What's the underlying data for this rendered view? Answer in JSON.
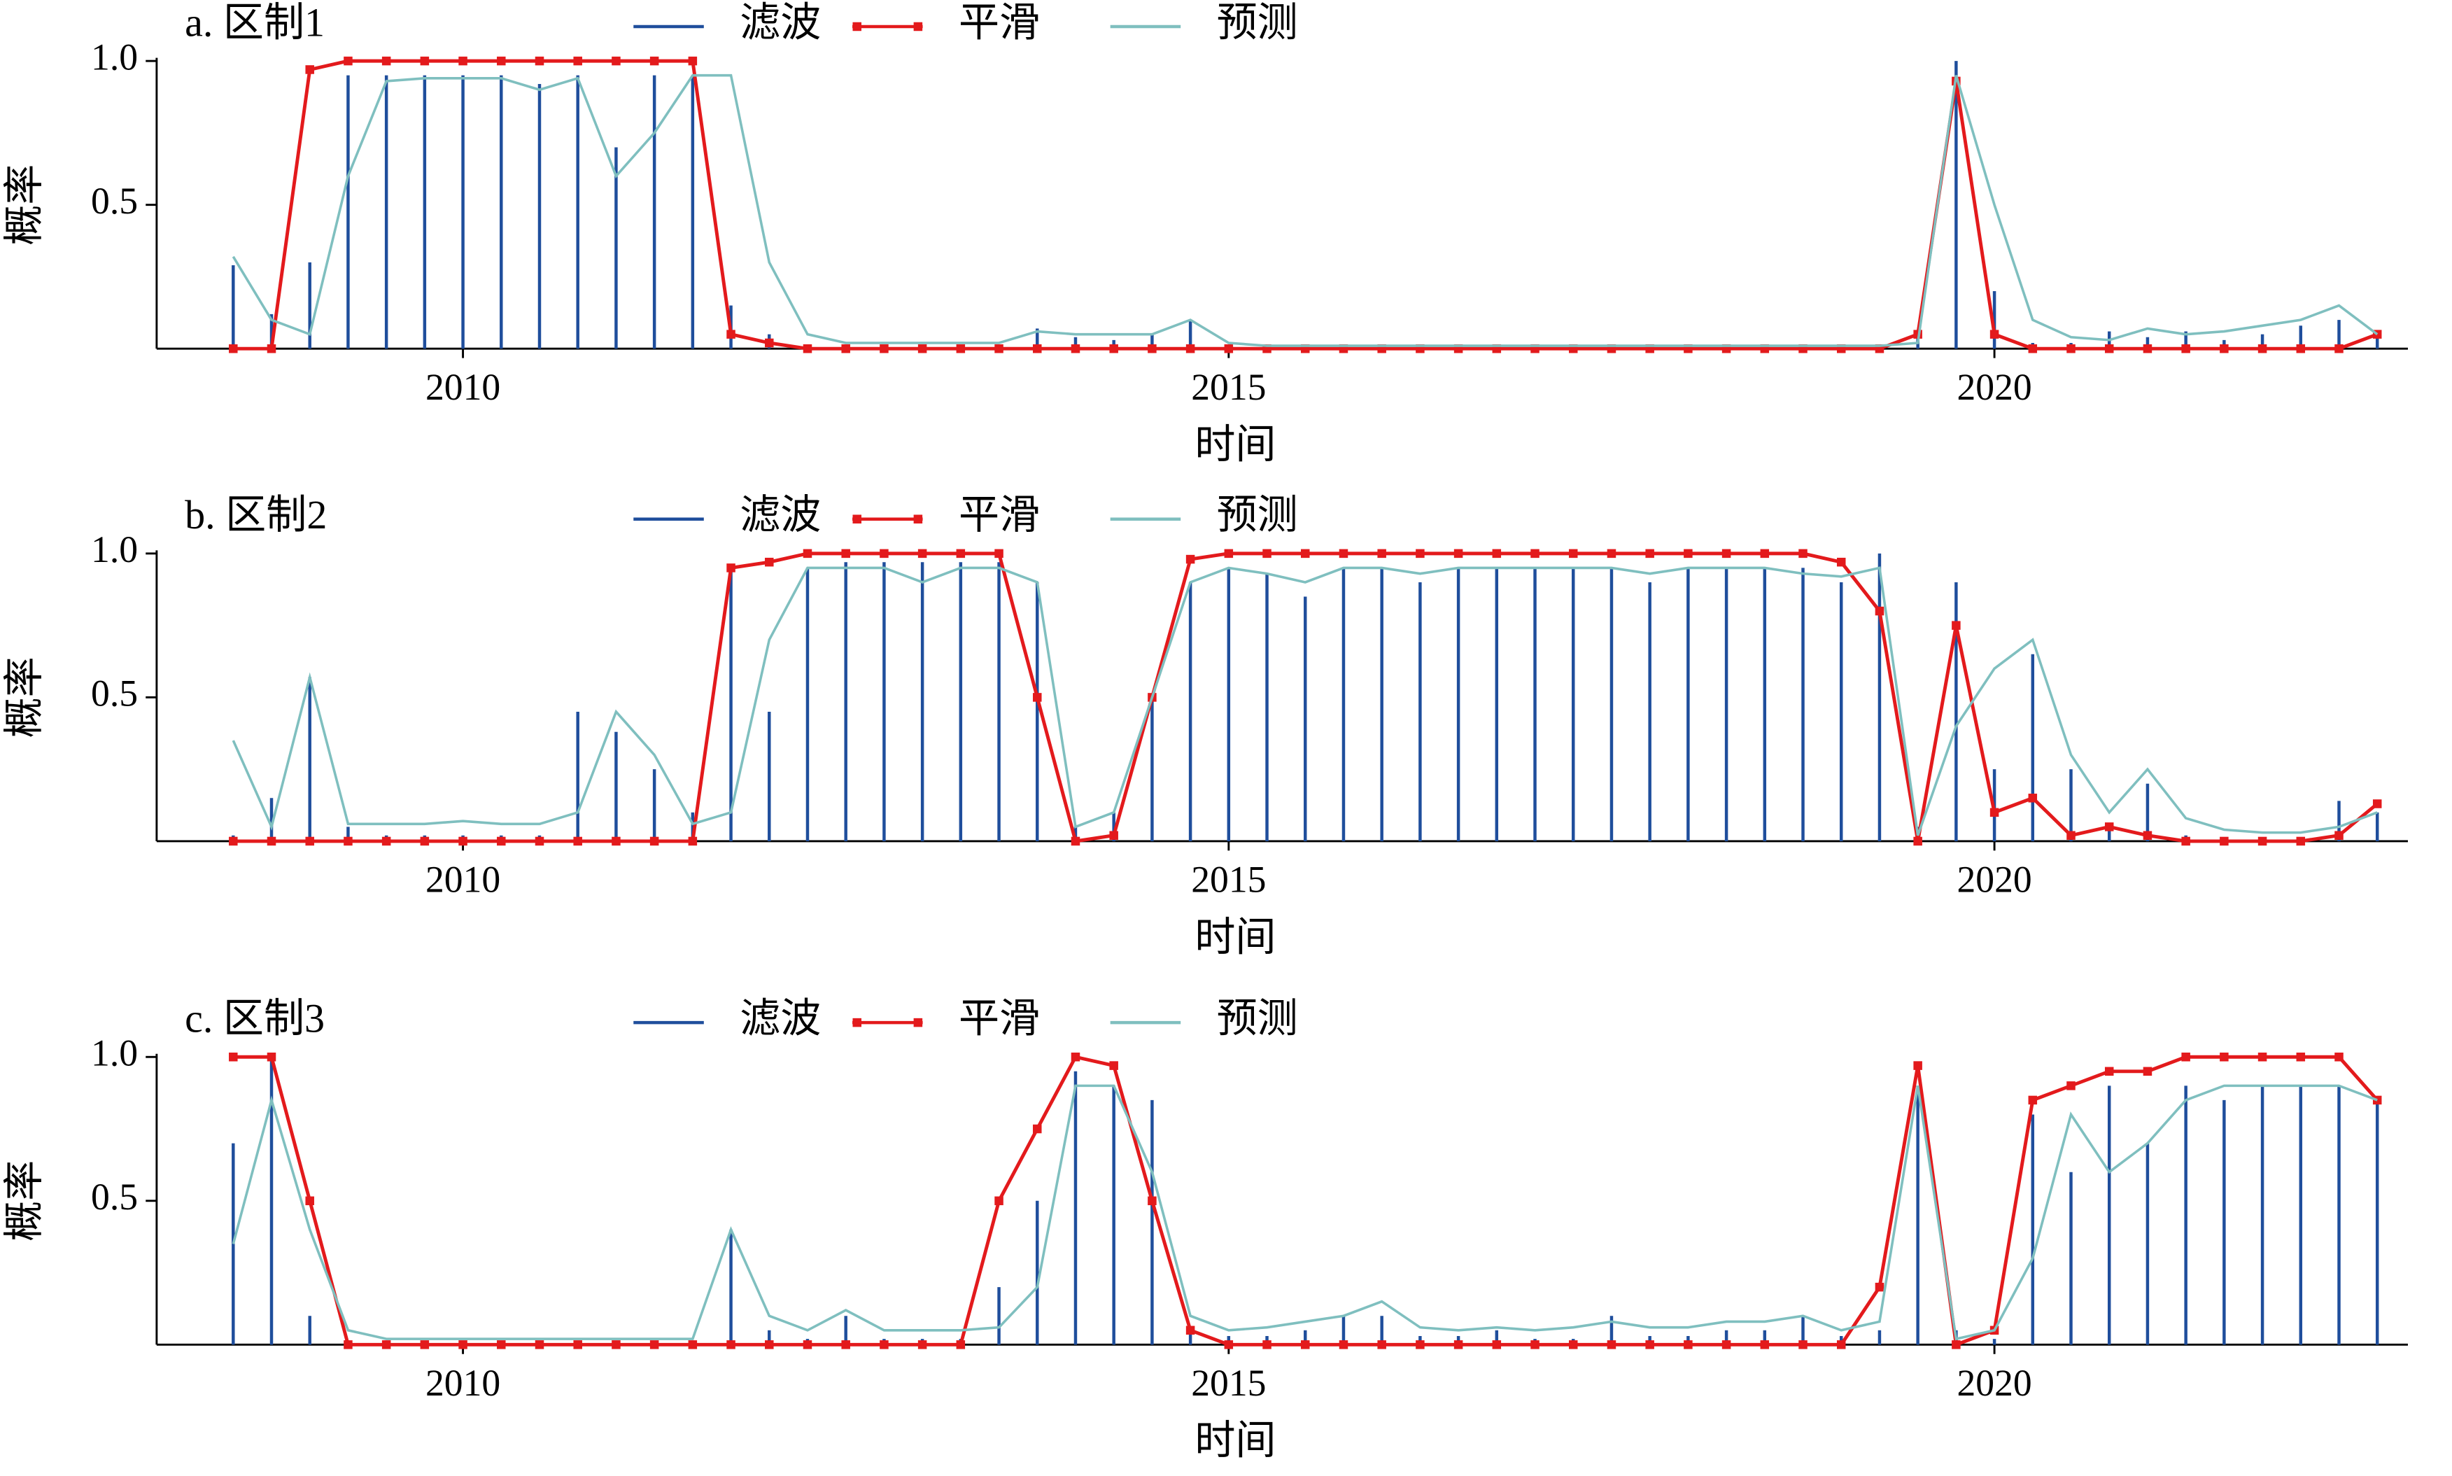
{
  "chart_data": [
    {
      "type": "line",
      "title": "a. 区制1",
      "xlabel": "时间",
      "ylabel": "概率",
      "x": [
        2008.5,
        2008.75,
        2009,
        2009.25,
        2009.5,
        2009.75,
        2010,
        2010.25,
        2010.5,
        2010.75,
        2011,
        2011.25,
        2011.5,
        2011.75,
        2012,
        2012.25,
        2012.5,
        2012.75,
        2013,
        2013.25,
        2013.5,
        2013.75,
        2014,
        2014.25,
        2014.5,
        2014.75,
        2015,
        2015.25,
        2015.5,
        2015.75,
        2016,
        2016.25,
        2016.5,
        2016.75,
        2017,
        2017.25,
        2017.5,
        2017.75,
        2018,
        2018.25,
        2018.5,
        2018.75,
        2019,
        2019.25,
        2019.5,
        2019.75,
        2020,
        2020.25,
        2020.5,
        2020.75,
        2021,
        2021.25,
        2021.5,
        2021.75,
        2022,
        2022.25,
        2022.5
      ],
      "series": [
        {
          "name": "滤波",
          "type": "bar",
          "color": "#1f4e9c",
          "values": [
            0.29,
            0.12,
            0.3,
            0.95,
            0.95,
            0.95,
            0.95,
            0.95,
            0.92,
            0.95,
            0.7,
            0.95,
            0.95,
            0.15,
            0.05,
            0.01,
            0,
            0,
            0,
            0,
            0,
            0.07,
            0.04,
            0.03,
            0.05,
            0.1,
            0.01,
            0,
            0,
            0,
            0,
            0,
            0,
            0,
            0,
            0,
            0,
            0,
            0,
            0,
            0,
            0,
            0,
            0,
            0.05,
            1.0,
            0.2,
            0.02,
            0.02,
            0.06,
            0.04,
            0.06,
            0.03,
            0.05,
            0.08,
            0.1,
            0.05
          ]
        },
        {
          "name": "平滑",
          "type": "line",
          "marker": "square",
          "color": "#e31a1c",
          "values": [
            0,
            0,
            0.97,
            1,
            1,
            1,
            1,
            1,
            1,
            1,
            1,
            1,
            1,
            0.05,
            0.02,
            0,
            0,
            0,
            0,
            0,
            0,
            0,
            0,
            0,
            0,
            0,
            0,
            0,
            0,
            0,
            0,
            0,
            0,
            0,
            0,
            0,
            0,
            0,
            0,
            0,
            0,
            0,
            0,
            0,
            0.05,
            0.93,
            0.05,
            0,
            0,
            0,
            0,
            0,
            0,
            0,
            0,
            0,
            0.05
          ]
        },
        {
          "name": "预测",
          "type": "line",
          "color": "#7fbfbf",
          "values": [
            0.32,
            0.1,
            0.05,
            0.6,
            0.93,
            0.94,
            0.94,
            0.94,
            0.9,
            0.94,
            0.6,
            0.75,
            0.95,
            0.95,
            0.3,
            0.05,
            0.02,
            0.02,
            0.02,
            0.02,
            0.02,
            0.06,
            0.05,
            0.05,
            0.05,
            0.1,
            0.02,
            0.01,
            0.01,
            0.01,
            0.01,
            0.01,
            0.01,
            0.01,
            0.01,
            0.01,
            0.01,
            0.01,
            0.01,
            0.01,
            0.01,
            0.01,
            0.01,
            0.01,
            0.02,
            0.95,
            0.5,
            0.1,
            0.04,
            0.03,
            0.07,
            0.05,
            0.06,
            0.08,
            0.1,
            0.15,
            0.05
          ]
        }
      ],
      "xlim": [
        2008,
        2022.7
      ],
      "ylim": [
        0,
        1
      ],
      "xticks": [
        2010,
        2015,
        2020
      ],
      "yticks": [
        0.5,
        {
          "value": 1,
          "label": "1.0"
        }
      ]
    },
    {
      "type": "line",
      "title": "b. 区制2",
      "xlabel": "时间",
      "ylabel": "概率",
      "x": [
        2008.5,
        2008.75,
        2009,
        2009.25,
        2009.5,
        2009.75,
        2010,
        2010.25,
        2010.5,
        2010.75,
        2011,
        2011.25,
        2011.5,
        2011.75,
        2012,
        2012.25,
        2012.5,
        2012.75,
        2013,
        2013.25,
        2013.5,
        2013.75,
        2014,
        2014.25,
        2014.5,
        2014.75,
        2015,
        2015.25,
        2015.5,
        2015.75,
        2016,
        2016.25,
        2016.5,
        2016.75,
        2017,
        2017.25,
        2017.5,
        2017.75,
        2018,
        2018.25,
        2018.5,
        2018.75,
        2019,
        2019.25,
        2019.5,
        2019.75,
        2020,
        2020.25,
        2020.5,
        2020.75,
        2021,
        2021.25,
        2021.5,
        2021.75,
        2022,
        2022.25,
        2022.5
      ],
      "series": [
        {
          "name": "滤波",
          "type": "bar",
          "color": "#1f4e9c",
          "values": [
            0.02,
            0.15,
            0.57,
            0.05,
            0.02,
            0.02,
            0.02,
            0.02,
            0.02,
            0.45,
            0.38,
            0.25,
            0.1,
            0.95,
            0.45,
            0.95,
            0.97,
            0.97,
            0.97,
            0.97,
            0.97,
            0.9,
            0.05,
            0.1,
            0.5,
            0.9,
            0.95,
            0.93,
            0.85,
            0.95,
            0.95,
            0.9,
            0.95,
            0.95,
            0.95,
            0.95,
            0.95,
            0.9,
            0.95,
            0.95,
            0.95,
            0.95,
            0.9,
            1.0,
            0.05,
            0.9,
            0.25,
            0.65,
            0.25,
            0.05,
            0.2,
            0.02,
            0.01,
            0.01,
            0.01,
            0.14,
            0.1
          ]
        },
        {
          "name": "平滑",
          "type": "line",
          "marker": "square",
          "color": "#e31a1c",
          "values": [
            0,
            0,
            0,
            0,
            0,
            0,
            0,
            0,
            0,
            0,
            0,
            0,
            0,
            0.95,
            0.97,
            1,
            1,
            1,
            1,
            1,
            1,
            0.5,
            0,
            0.02,
            0.5,
            0.98,
            1,
            1,
            1,
            1,
            1,
            1,
            1,
            1,
            1,
            1,
            1,
            1,
            1,
            1,
            1,
            1,
            0.97,
            0.8,
            0,
            0.75,
            0.1,
            0.15,
            0.02,
            0.05,
            0.02,
            0,
            0,
            0,
            0,
            0.02,
            0.13
          ]
        },
        {
          "name": "预测",
          "type": "line",
          "color": "#7fbfbf",
          "values": [
            0.35,
            0.05,
            0.57,
            0.06,
            0.06,
            0.06,
            0.07,
            0.06,
            0.06,
            0.1,
            0.45,
            0.3,
            0.06,
            0.1,
            0.7,
            0.95,
            0.95,
            0.95,
            0.9,
            0.95,
            0.95,
            0.9,
            0.05,
            0.1,
            0.5,
            0.9,
            0.95,
            0.93,
            0.9,
            0.95,
            0.95,
            0.93,
            0.95,
            0.95,
            0.95,
            0.95,
            0.95,
            0.93,
            0.95,
            0.95,
            0.95,
            0.93,
            0.92,
            0.95,
            0.02,
            0.4,
            0.6,
            0.7,
            0.3,
            0.1,
            0.25,
            0.08,
            0.04,
            0.03,
            0.03,
            0.05,
            0.1
          ]
        }
      ],
      "xlim": [
        2008,
        2022.7
      ],
      "ylim": [
        0,
        1
      ],
      "xticks": [
        2010,
        2015,
        2020
      ],
      "yticks": [
        0.5,
        {
          "value": 1,
          "label": "1.0"
        }
      ]
    },
    {
      "type": "line",
      "title": "c. 区制3",
      "xlabel": "时间",
      "ylabel": "概率",
      "x": [
        2008.5,
        2008.75,
        2009,
        2009.25,
        2009.5,
        2009.75,
        2010,
        2010.25,
        2010.5,
        2010.75,
        2011,
        2011.25,
        2011.5,
        2011.75,
        2012,
        2012.25,
        2012.5,
        2012.75,
        2013,
        2013.25,
        2013.5,
        2013.75,
        2014,
        2014.25,
        2014.5,
        2014.75,
        2015,
        2015.25,
        2015.5,
        2015.75,
        2016,
        2016.25,
        2016.5,
        2016.75,
        2017,
        2017.25,
        2017.5,
        2017.75,
        2018,
        2018.25,
        2018.5,
        2018.75,
        2019,
        2019.25,
        2019.5,
        2019.75,
        2020,
        2020.25,
        2020.5,
        2020.75,
        2021,
        2021.25,
        2021.5,
        2021.75,
        2022,
        2022.25,
        2022.5
      ],
      "series": [
        {
          "name": "滤波",
          "type": "bar",
          "color": "#1f4e9c",
          "values": [
            0.7,
            1.0,
            0.1,
            0,
            0,
            0,
            0,
            0,
            0,
            0,
            0,
            0,
            0,
            0.4,
            0.05,
            0.02,
            0.1,
            0.02,
            0.02,
            0.02,
            0.2,
            0.5,
            0.95,
            0.9,
            0.85,
            0.05,
            0.03,
            0.03,
            0.05,
            0.1,
            0.1,
            0.03,
            0.03,
            0.05,
            0.02,
            0.02,
            0.1,
            0.03,
            0.03,
            0.05,
            0.05,
            0.1,
            0.03,
            0.05,
            0.9,
            0.05,
            0.02,
            0.8,
            0.6,
            0.9,
            0.7,
            0.9,
            0.85,
            0.9,
            0.9,
            0.9,
            0.85
          ]
        },
        {
          "name": "平滑",
          "type": "line",
          "marker": "square",
          "color": "#e31a1c",
          "values": [
            1,
            1,
            0.5,
            0,
            0,
            0,
            0,
            0,
            0,
            0,
            0,
            0,
            0,
            0,
            0,
            0,
            0,
            0,
            0,
            0,
            0.5,
            0.75,
            1,
            0.97,
            0.5,
            0.05,
            0,
            0,
            0,
            0,
            0,
            0,
            0,
            0,
            0,
            0,
            0,
            0,
            0,
            0,
            0,
            0,
            0,
            0.2,
            0.97,
            0,
            0.05,
            0.85,
            0.9,
            0.95,
            0.95,
            1,
            1,
            1,
            1,
            1,
            0.85
          ]
        },
        {
          "name": "预测",
          "type": "line",
          "color": "#7fbfbf",
          "values": [
            0.35,
            0.85,
            0.4,
            0.05,
            0.02,
            0.02,
            0.02,
            0.02,
            0.02,
            0.02,
            0.02,
            0.02,
            0.02,
            0.4,
            0.1,
            0.05,
            0.12,
            0.05,
            0.05,
            0.05,
            0.06,
            0.2,
            0.9,
            0.9,
            0.6,
            0.1,
            0.05,
            0.06,
            0.08,
            0.1,
            0.15,
            0.06,
            0.05,
            0.06,
            0.05,
            0.06,
            0.08,
            0.06,
            0.06,
            0.08,
            0.08,
            0.1,
            0.05,
            0.08,
            0.9,
            0.02,
            0.05,
            0.3,
            0.8,
            0.6,
            0.7,
            0.85,
            0.9,
            0.9,
            0.9,
            0.9,
            0.85
          ]
        }
      ],
      "xlim": [
        2008,
        2022.7
      ],
      "ylim": [
        0,
        1
      ],
      "xticks": [
        2010,
        2015,
        2020
      ],
      "yticks": [
        0.5,
        {
          "value": 1,
          "label": "1.0"
        }
      ]
    }
  ]
}
